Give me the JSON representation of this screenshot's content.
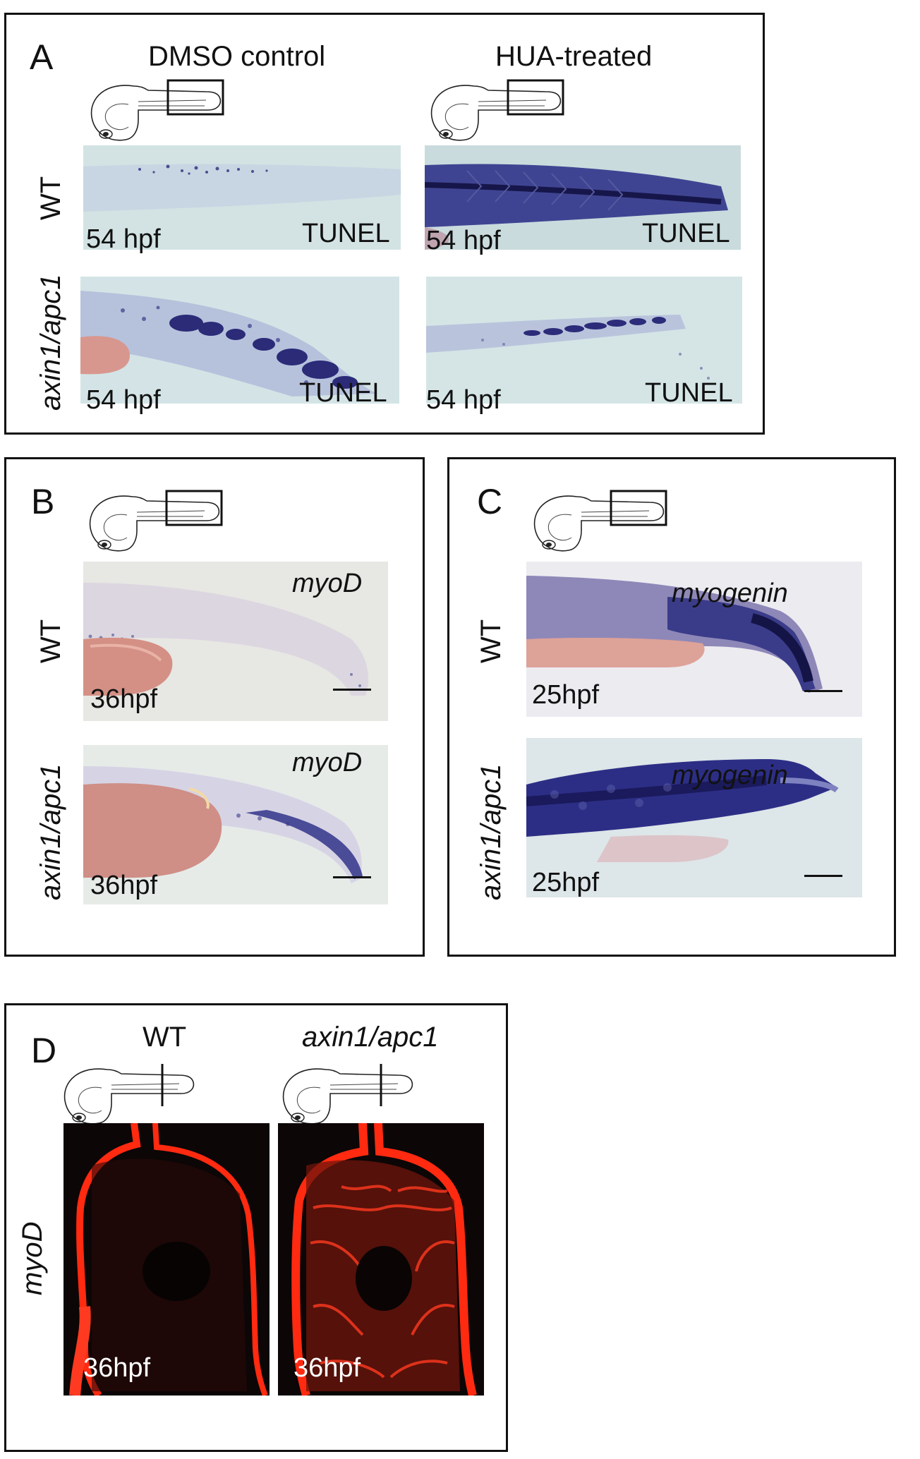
{
  "panel_a": {
    "letter": "A",
    "col_titles": [
      "DMSO control",
      "HUA-treated"
    ],
    "row_labels": [
      "WT",
      "axin1/apc1"
    ],
    "stage": "54 hpf",
    "stain": "TUNEL"
  },
  "panel_b": {
    "letter": "B",
    "row_labels": [
      "WT",
      "axin1/apc1"
    ],
    "stage": "36hpf",
    "gene": "myoD"
  },
  "panel_c": {
    "letter": "C",
    "row_labels": [
      "WT",
      "axin1/apc1"
    ],
    "stage": "25hpf",
    "gene": "myogenin"
  },
  "panel_d": {
    "letter": "D",
    "col_titles": [
      "WT",
      "axin1/apc1"
    ],
    "row_label": "myoD",
    "stage": "36hpf"
  },
  "colors": {
    "stain_blue": "#2a2a7a",
    "tissue_bg": "#d6e6e6",
    "yolk": "#d98c84",
    "fluor_red": "#ff2a10",
    "fluor_bg": "#0c0606"
  }
}
